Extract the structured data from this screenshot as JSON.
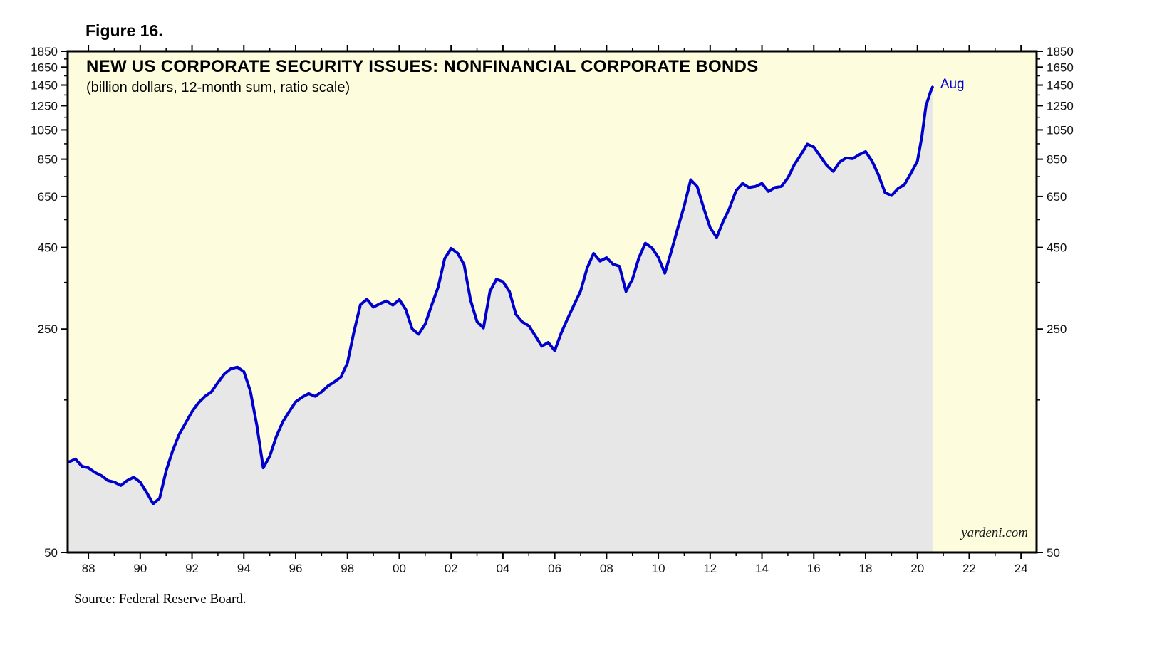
{
  "figure_label": "Figure 16.",
  "watermark": "yardeni.com",
  "source": "Source: Federal Reserve Board.",
  "chart_data": {
    "type": "line",
    "title": "NEW US CORPORATE SECURITY ISSUES: NONFINANCIAL CORPORATE BONDS",
    "subtitle": "(billion dollars, 12-month sum, ratio scale)",
    "y_scale": "log",
    "ylim": [
      50,
      1850
    ],
    "xlim": [
      1987.2,
      2024.6
    ],
    "grid": "off",
    "legend": "none",
    "plot_bg": "#fdfcdc",
    "area_fill": "#e7e7e7",
    "line_color": "#0000cd",
    "frame_color": "#000000",
    "y_major_ticks": [
      50,
      250,
      450,
      650,
      850,
      1050,
      1250,
      1450,
      1650,
      1850
    ],
    "y_tick_labels": [
      "50",
      "250",
      "450",
      "650",
      "850",
      "1050",
      "1250",
      "1450",
      "1650",
      "1850"
    ],
    "y_minor_ticks": [
      150,
      350,
      550,
      750,
      950,
      1150,
      1350,
      1550,
      1750
    ],
    "x_tick_years": [
      1988,
      1990,
      1992,
      1994,
      1996,
      1998,
      2000,
      2002,
      2004,
      2006,
      2008,
      2010,
      2012,
      2014,
      2016,
      2018,
      2020,
      2022,
      2024
    ],
    "x_tick_labels": [
      "88",
      "90",
      "92",
      "94",
      "96",
      "98",
      "00",
      "02",
      "04",
      "06",
      "08",
      "10",
      "12",
      "14",
      "16",
      "18",
      "20",
      "22",
      "24"
    ],
    "annotations": [
      {
        "text": "Aug",
        "x": 2020.58,
        "y": 1428
      }
    ],
    "points": [
      [
        1987.25,
        96
      ],
      [
        1987.5,
        98
      ],
      [
        1987.75,
        93
      ],
      [
        1988,
        92
      ],
      [
        1988.25,
        89
      ],
      [
        1988.5,
        87
      ],
      [
        1988.75,
        84
      ],
      [
        1989,
        83
      ],
      [
        1989.25,
        81
      ],
      [
        1989.5,
        84
      ],
      [
        1989.75,
        86
      ],
      [
        1990,
        83
      ],
      [
        1990.25,
        77
      ],
      [
        1990.5,
        71
      ],
      [
        1990.75,
        74
      ],
      [
        1991,
        90
      ],
      [
        1991.25,
        104
      ],
      [
        1991.5,
        117
      ],
      [
        1991.75,
        127
      ],
      [
        1992,
        138
      ],
      [
        1992.25,
        147
      ],
      [
        1992.5,
        154
      ],
      [
        1992.75,
        159
      ],
      [
        1993,
        170
      ],
      [
        1993.25,
        181
      ],
      [
        1993.5,
        188
      ],
      [
        1993.75,
        190
      ],
      [
        1994,
        184
      ],
      [
        1994.25,
        160
      ],
      [
        1994.5,
        125
      ],
      [
        1994.75,
        92
      ],
      [
        1995,
        100
      ],
      [
        1995.25,
        115
      ],
      [
        1995.5,
        128
      ],
      [
        1995.75,
        138
      ],
      [
        1996,
        148
      ],
      [
        1996.25,
        153
      ],
      [
        1996.5,
        157
      ],
      [
        1996.75,
        154
      ],
      [
        1997,
        159
      ],
      [
        1997.25,
        166
      ],
      [
        1997.5,
        171
      ],
      [
        1997.75,
        177
      ],
      [
        1998,
        196
      ],
      [
        1998.25,
        245
      ],
      [
        1998.5,
        298
      ],
      [
        1998.75,
        310
      ],
      [
        1999,
        293
      ],
      [
        1999.25,
        300
      ],
      [
        1999.5,
        306
      ],
      [
        1999.75,
        297
      ],
      [
        2000,
        309
      ],
      [
        2000.25,
        288
      ],
      [
        2000.5,
        250
      ],
      [
        2000.75,
        241
      ],
      [
        2001,
        259
      ],
      [
        2001.25,
        297
      ],
      [
        2001.5,
        338
      ],
      [
        2001.75,
        415
      ],
      [
        2002,
        447
      ],
      [
        2002.25,
        432
      ],
      [
        2002.5,
        398
      ],
      [
        2002.75,
        308
      ],
      [
        2003,
        264
      ],
      [
        2003.25,
        252
      ],
      [
        2003.5,
        328
      ],
      [
        2003.75,
        358
      ],
      [
        2004,
        352
      ],
      [
        2004.25,
        328
      ],
      [
        2004.5,
        278
      ],
      [
        2004.75,
        263
      ],
      [
        2005,
        256
      ],
      [
        2005.25,
        238
      ],
      [
        2005.5,
        221
      ],
      [
        2005.75,
        227
      ],
      [
        2006,
        214
      ],
      [
        2006.25,
        243
      ],
      [
        2006.5,
        270
      ],
      [
        2006.75,
        298
      ],
      [
        2007,
        329
      ],
      [
        2007.25,
        388
      ],
      [
        2007.5,
        431
      ],
      [
        2007.75,
        408
      ],
      [
        2008,
        418
      ],
      [
        2008.25,
        399
      ],
      [
        2008.5,
        393
      ],
      [
        2008.75,
        328
      ],
      [
        2009,
        358
      ],
      [
        2009.25,
        418
      ],
      [
        2009.5,
        464
      ],
      [
        2009.75,
        449
      ],
      [
        2010,
        419
      ],
      [
        2010.25,
        374
      ],
      [
        2010.5,
        438
      ],
      [
        2010.75,
        518
      ],
      [
        2011,
        608
      ],
      [
        2011.25,
        733
      ],
      [
        2011.5,
        698
      ],
      [
        2011.75,
        598
      ],
      [
        2012,
        519
      ],
      [
        2012.25,
        484
      ],
      [
        2012.5,
        543
      ],
      [
        2012.75,
        598
      ],
      [
        2013,
        678
      ],
      [
        2013.25,
        714
      ],
      [
        2013.5,
        693
      ],
      [
        2013.75,
        699
      ],
      [
        2014,
        714
      ],
      [
        2014.25,
        674
      ],
      [
        2014.5,
        693
      ],
      [
        2014.75,
        699
      ],
      [
        2015,
        743
      ],
      [
        2015.25,
        818
      ],
      [
        2015.5,
        878
      ],
      [
        2015.75,
        948
      ],
      [
        2016,
        928
      ],
      [
        2016.25,
        868
      ],
      [
        2016.5,
        813
      ],
      [
        2016.75,
        779
      ],
      [
        2017,
        833
      ],
      [
        2017.25,
        858
      ],
      [
        2017.5,
        853
      ],
      [
        2017.75,
        878
      ],
      [
        2018,
        898
      ],
      [
        2018.25,
        838
      ],
      [
        2018.5,
        758
      ],
      [
        2018.75,
        668
      ],
      [
        2019,
        654
      ],
      [
        2019.25,
        688
      ],
      [
        2019.5,
        708
      ],
      [
        2019.75,
        768
      ],
      [
        2020,
        838
      ],
      [
        2020.17,
        998
      ],
      [
        2020.33,
        1248
      ],
      [
        2020.5,
        1378
      ],
      [
        2020.58,
        1428
      ]
    ]
  }
}
